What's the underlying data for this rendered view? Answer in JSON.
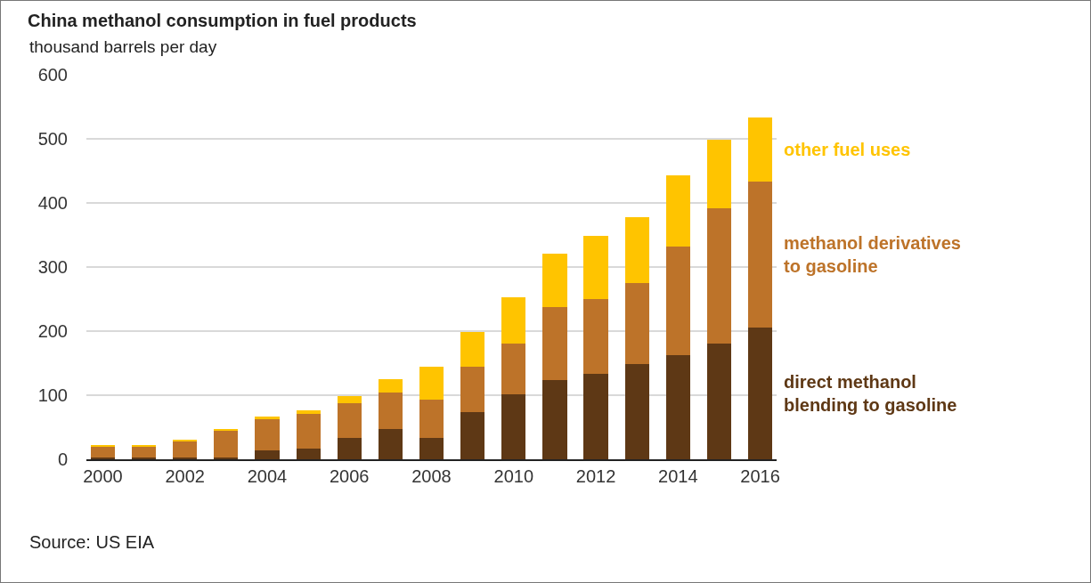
{
  "chart_data": {
    "type": "bar",
    "stacked": true,
    "title": "China methanol consumption in fuel products",
    "ylabel": "thousand barrels per day",
    "x": [
      2000,
      2001,
      2002,
      2003,
      2004,
      2005,
      2006,
      2007,
      2008,
      2009,
      2010,
      2011,
      2012,
      2013,
      2014,
      2015,
      2016
    ],
    "xlim": [
      1999.6,
      2016.4
    ],
    "xticks": [
      2000,
      2002,
      2004,
      2006,
      2008,
      2010,
      2012,
      2014,
      2016
    ],
    "ylim": [
      0,
      600
    ],
    "yticks": [
      0,
      100,
      200,
      300,
      400,
      500,
      600
    ],
    "grid": "y",
    "series": [
      {
        "name": "direct methanol blending to gasoline",
        "color": "#5e3815",
        "values": [
          3,
          3,
          3,
          3,
          14,
          17,
          33,
          47,
          33,
          74,
          101,
          123,
          134,
          148,
          162,
          180,
          205
        ]
      },
      {
        "name": "methanol derivatives to gasoline",
        "color": "#bd7329",
        "values": [
          16,
          16,
          25,
          41,
          49,
          54,
          54,
          57,
          60,
          71,
          79,
          114,
          116,
          127,
          170,
          212,
          228
        ]
      },
      {
        "name": "other fuel uses",
        "color": "#ffc400",
        "values": [
          3,
          3,
          3,
          3,
          3,
          6,
          11,
          21,
          51,
          54,
          73,
          84,
          98,
          103,
          111,
          106,
          100
        ]
      }
    ],
    "annotations": [
      "Source: US EIA"
    ]
  }
}
